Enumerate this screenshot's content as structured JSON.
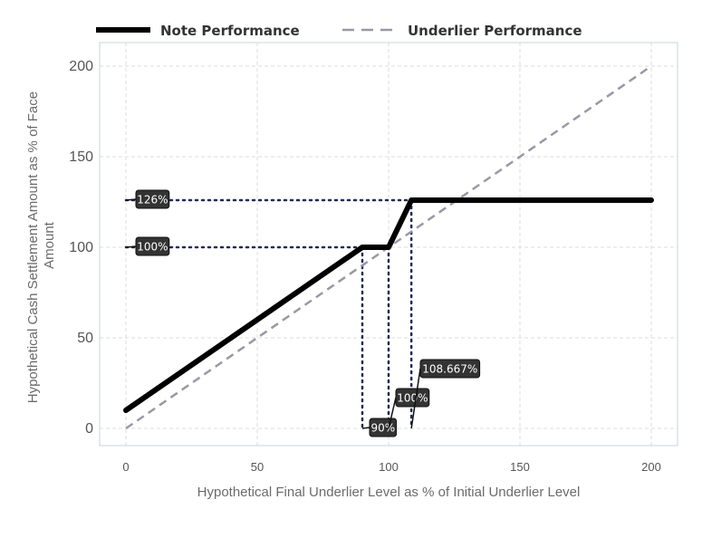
{
  "chart_data": {
    "type": "line",
    "xlabel": "Hypothetical Final Underlier Level as % of Initial Underlier Level",
    "ylabel": [
      "Hypothetical Cash Settlement Amount as % of Face",
      "Amount"
    ],
    "xlim": [
      -10,
      210
    ],
    "ylim": [
      -10,
      210
    ],
    "xticks": [
      0,
      50,
      100,
      150,
      200
    ],
    "yticks": [
      0,
      50,
      100,
      150,
      200
    ],
    "grid": true,
    "legend_position": "top",
    "series": [
      {
        "name": "Note Performance",
        "style": "solid",
        "color": "#000000",
        "x": [
          0,
          90,
          100,
          108.667,
          200
        ],
        "y": [
          10,
          100,
          100,
          126,
          126
        ]
      },
      {
        "name": "Underlier Performance",
        "style": "dashed",
        "color": "#9a98a6",
        "x": [
          0,
          200
        ],
        "y": [
          0,
          200
        ]
      }
    ],
    "reference_lines": {
      "color": "#1e2a5a",
      "horizontal": [
        {
          "y": 126,
          "x_end": 108.667
        },
        {
          "y": 100,
          "x_end": 100
        }
      ],
      "vertical": [
        {
          "x": 90,
          "y_end": 100
        },
        {
          "x": 100,
          "y_end": 100
        },
        {
          "x": 108.667,
          "y_end": 126
        }
      ]
    },
    "annotations": [
      {
        "text": "126%",
        "x": 0,
        "y": 126
      },
      {
        "text": "100%",
        "x": 0,
        "y": 100
      },
      {
        "text": "90%",
        "x": 90,
        "y": 0
      },
      {
        "text": "100%",
        "x": 100,
        "y": 0
      },
      {
        "text": "108.667%",
        "x": 108.667,
        "y": 0
      }
    ]
  }
}
